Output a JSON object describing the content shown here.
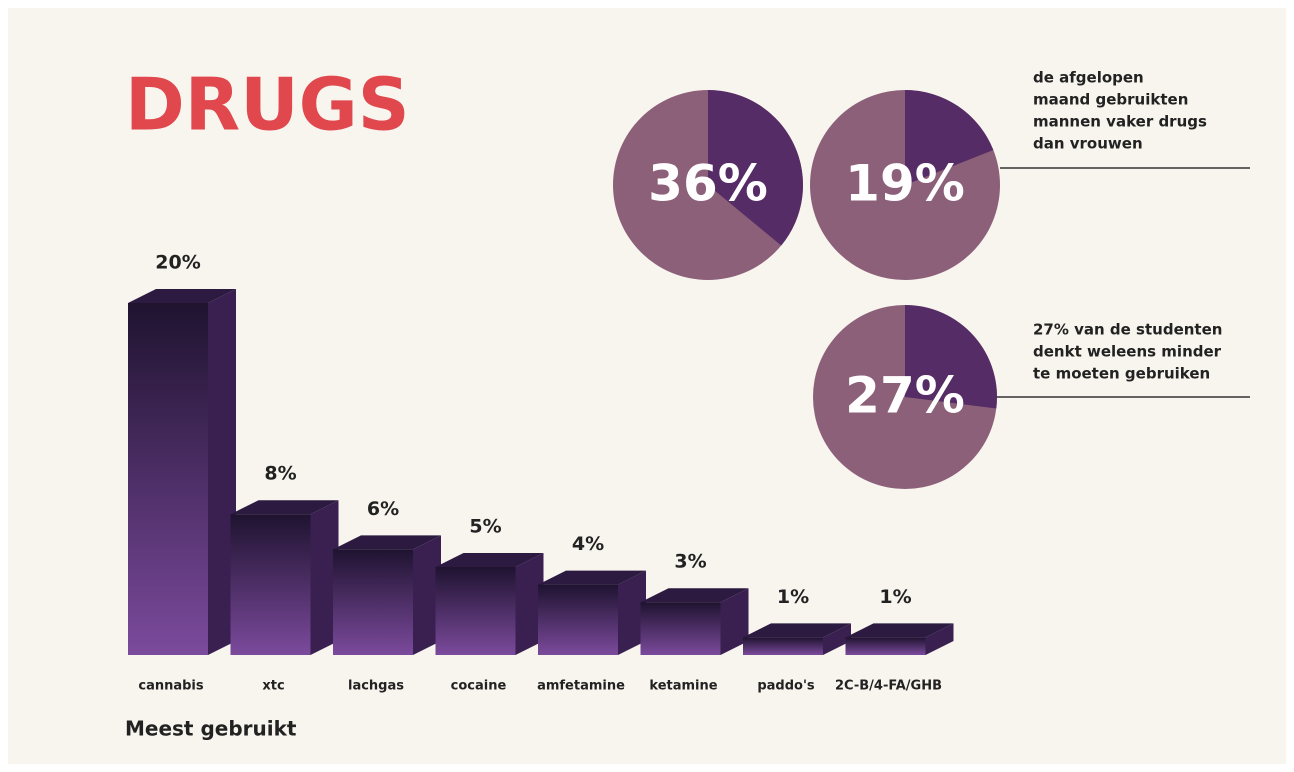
{
  "chart_data": {
    "type": "bar",
    "title": "DRUGS",
    "categories": [
      "cannabis",
      "xtc",
      "lachgas",
      "cocaine",
      "amfetamine",
      "ketamine",
      "paddo's",
      "2C-B/4-FA/GHB"
    ],
    "values": [
      20,
      8,
      6,
      5,
      4,
      3,
      1,
      1
    ],
    "value_labels": [
      "20%",
      "8%",
      "6%",
      "5%",
      "4%",
      "3%",
      "1%",
      "1%"
    ],
    "xlabel": "Meest gebruikt",
    "colors": {
      "top": "#1f1330",
      "bottom": "#7b4a9c"
    }
  },
  "stats": [
    {
      "value": 36,
      "label": "36%"
    },
    {
      "value": 19,
      "label": "19%"
    },
    {
      "value": 27,
      "label": "27%"
    }
  ],
  "notes": [
    {
      "lines": [
        "de afgelopen",
        "maand gebruikten",
        "mannen vaker drugs",
        "dan vrouwen"
      ]
    },
    {
      "lines": [
        "27% van de studenten",
        "denkt weleens minder",
        "te moeten gebruiken"
      ]
    }
  ]
}
